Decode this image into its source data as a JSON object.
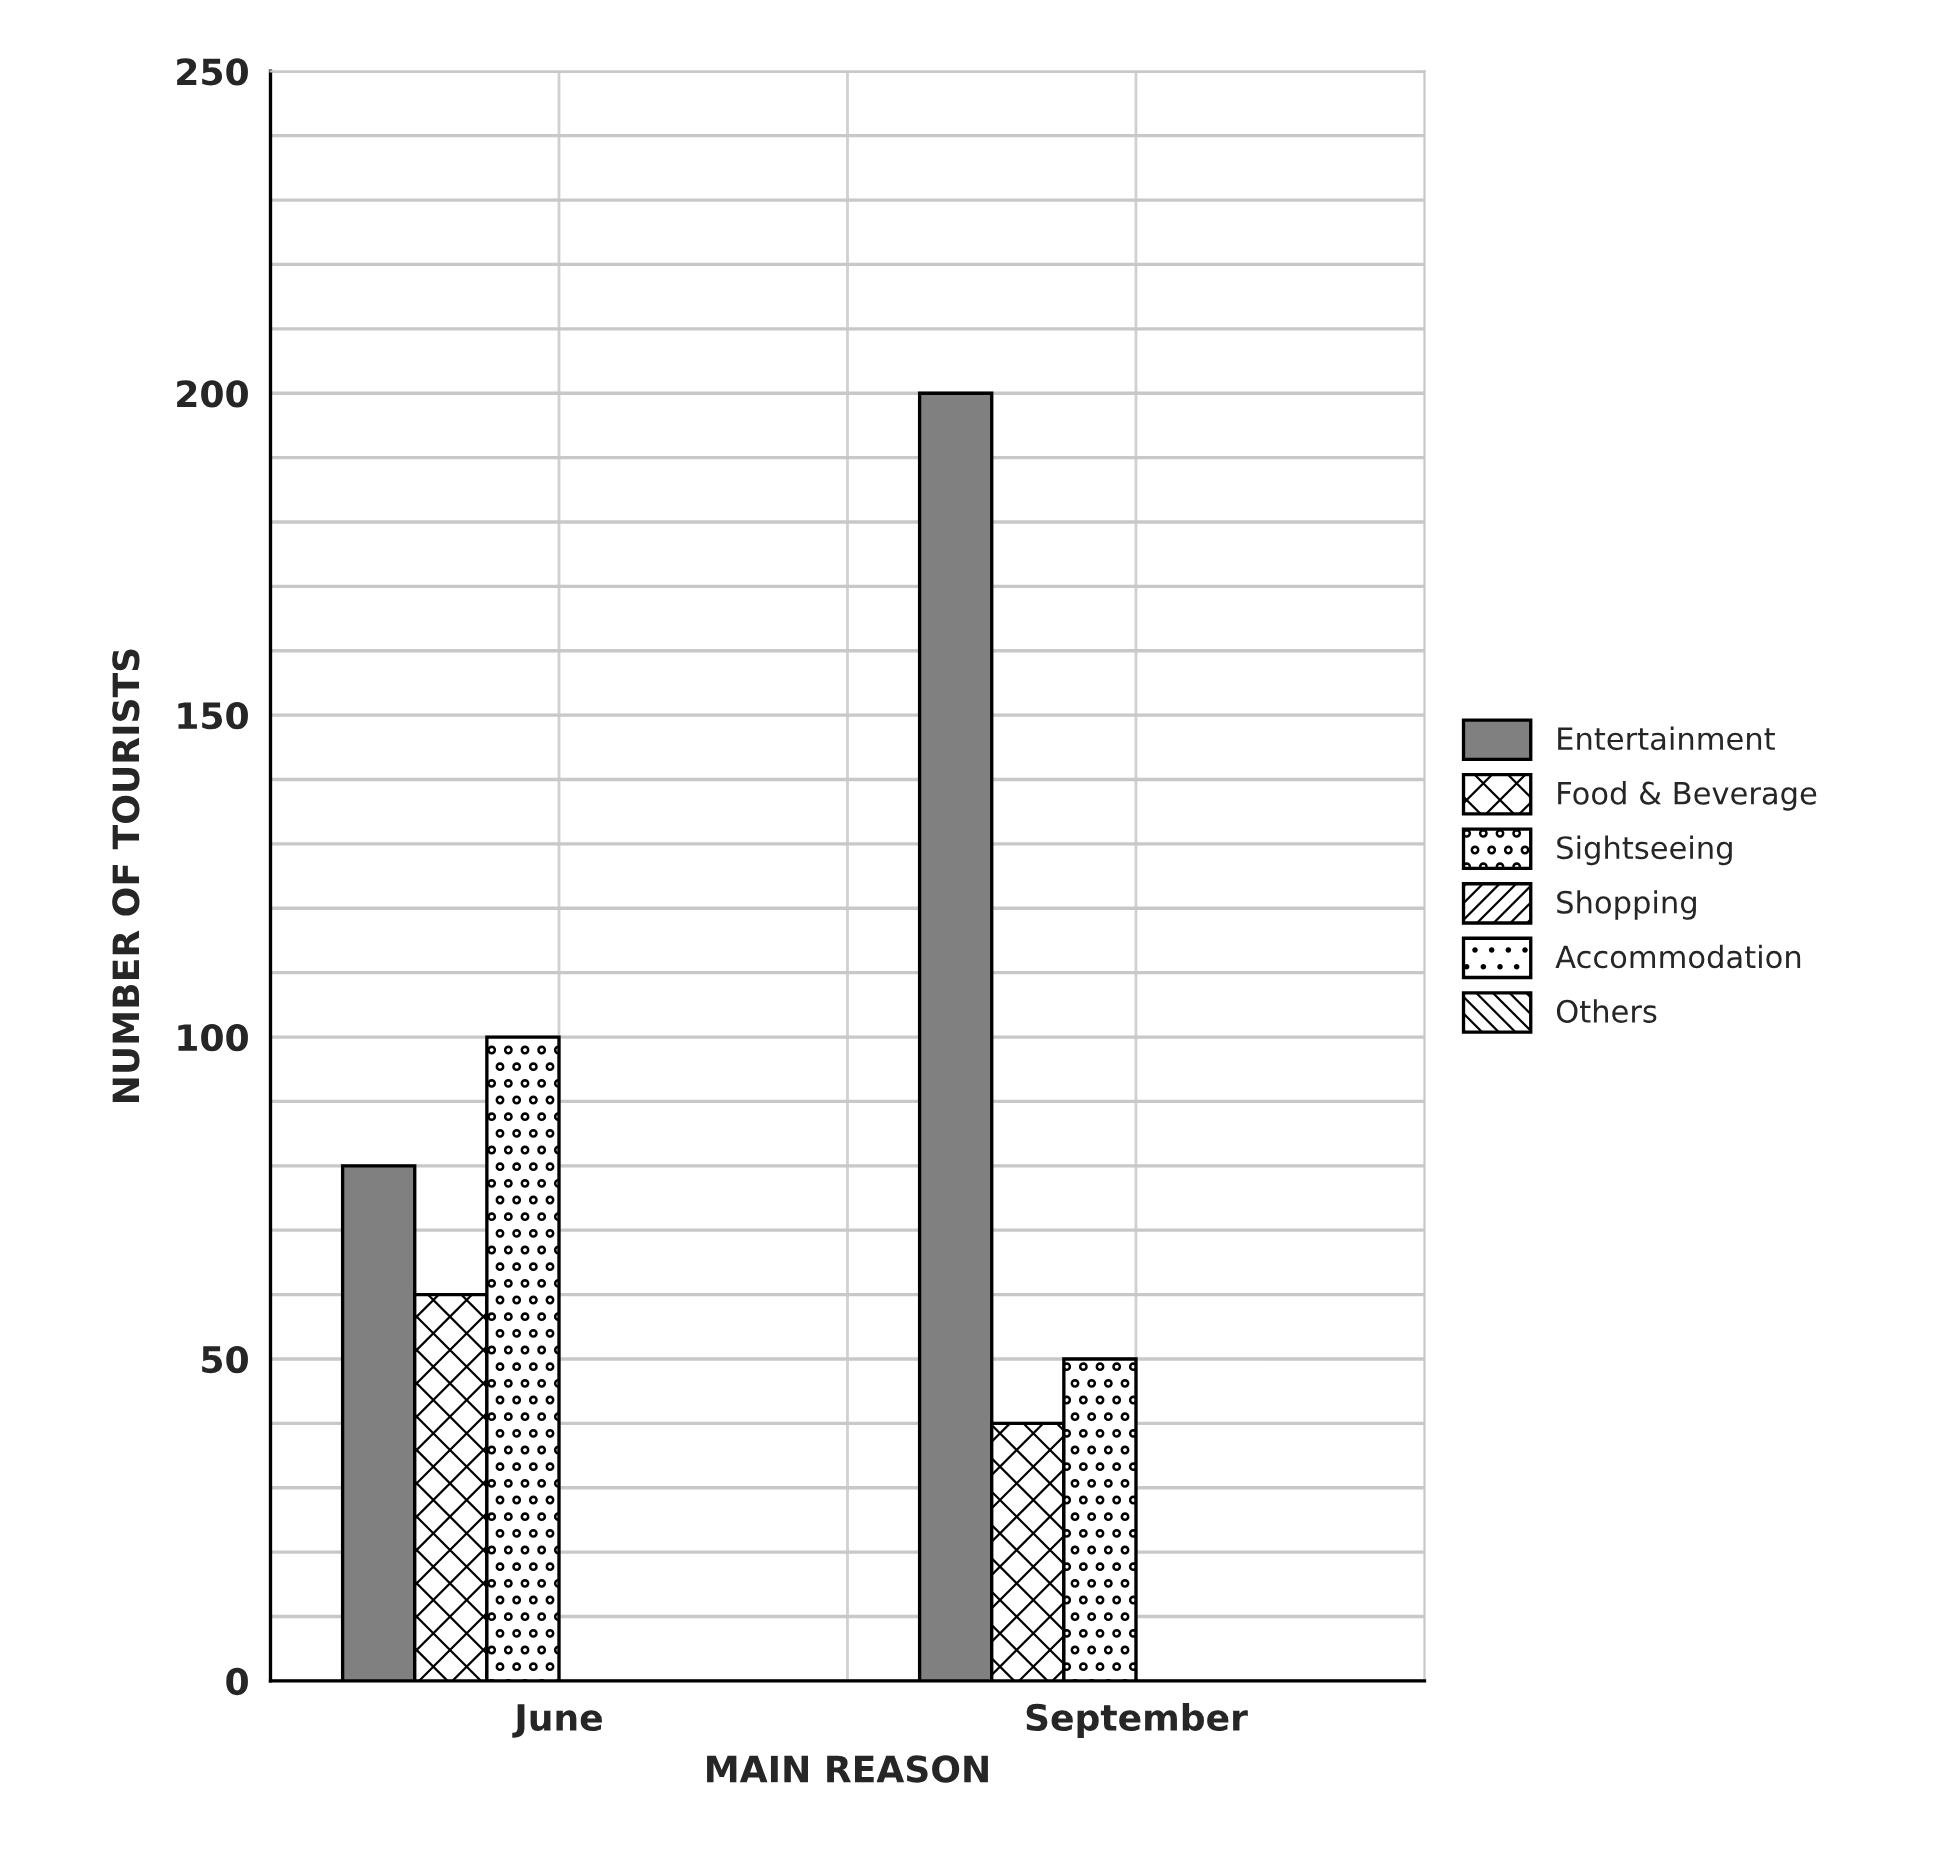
{
  "chart_data": {
    "type": "bar",
    "xlabel": "MAIN REASON",
    "ylabel": "NUMBER OF TOURISTS",
    "categories": [
      "June",
      "September"
    ],
    "series": [
      {
        "name": "Entertainment",
        "color": "#808080",
        "values": [
          80,
          200
        ]
      },
      {
        "name": "Food & Beverage",
        "color": "#000000",
        "values": [
          60,
          40
        ]
      },
      {
        "name": "Sightseeing",
        "color": "#000000",
        "values": [
          100,
          50
        ]
      },
      {
        "name": "Shopping",
        "color": "#000000",
        "values": [
          0,
          0
        ]
      },
      {
        "name": "Accommodation",
        "color": "#000000",
        "values": [
          0,
          0
        ]
      },
      {
        "name": "Others",
        "color": "#000000",
        "values": [
          0,
          0
        ]
      }
    ],
    "ylim": [
      0,
      250
    ],
    "yticks": [
      0,
      {
        "value": 10,
        "label": null
      },
      {
        "value": 20,
        "label": null
      },
      {
        "value": 30,
        "label": null
      },
      {
        "value": 40,
        "label": null
      },
      50,
      {
        "value": 60,
        "label": null
      },
      {
        "value": 70,
        "label": null
      },
      {
        "value": 80,
        "label": null
      },
      {
        "value": 90,
        "label": null
      },
      100,
      {
        "value": 110,
        "label": null
      },
      {
        "value": 120,
        "label": null
      },
      {
        "value": 130,
        "label": null
      },
      {
        "value": 140,
        "label": null
      },
      150,
      {
        "value": 160,
        "label": null
      },
      {
        "value": 170,
        "label": null
      },
      {
        "value": 180,
        "label": null
      },
      {
        "value": 190,
        "label": null
      },
      200,
      {
        "value": 210,
        "label": null
      },
      {
        "value": 220,
        "label": null
      },
      {
        "value": 230,
        "label": null
      },
      {
        "value": 240,
        "label": null
      },
      250
    ],
    "grid": true,
    "legend": "right"
  }
}
